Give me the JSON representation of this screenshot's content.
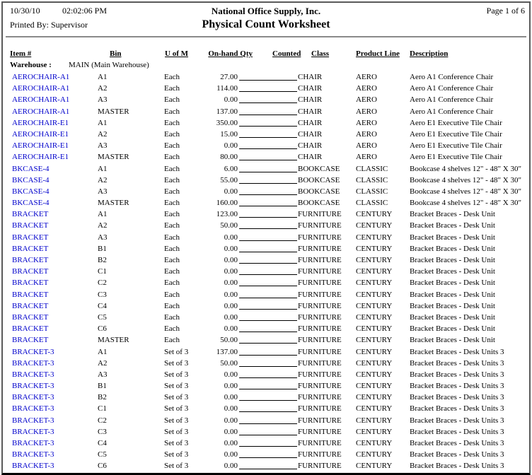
{
  "report": {
    "date": "10/30/10",
    "time": "02:02:06 PM",
    "company": "National Office Supply, Inc.",
    "page": "Page 1 of 6",
    "printed_by": "Printed By: Supervisor",
    "title": "Physical Count Worksheet"
  },
  "columns": {
    "item": "Item #",
    "bin": "Bin",
    "uom": "U of M",
    "qty": "On-hand Qty",
    "counted": "Counted",
    "class": "Class",
    "product_line": "Product Line",
    "description": "Description"
  },
  "warehouse": {
    "label": "Warehouse :",
    "value": "MAIN (Main Warehouse)"
  },
  "colors": {
    "item_link": "#0000CC",
    "frame_border": "#5a5a5a",
    "bottom_border": "#000000"
  },
  "rows": [
    {
      "item": "AEROCHAIR-A1",
      "bin": "A1",
      "uom": "Each",
      "qty": "27.00",
      "class": "CHAIR",
      "product_line": "AERO",
      "description": "Aero A1 Conference Chair"
    },
    {
      "item": "AEROCHAIR-A1",
      "bin": "A2",
      "uom": "Each",
      "qty": "114.00",
      "class": "CHAIR",
      "product_line": "AERO",
      "description": "Aero A1 Conference Chair"
    },
    {
      "item": "AEROCHAIR-A1",
      "bin": "A3",
      "uom": "Each",
      "qty": "0.00",
      "class": "CHAIR",
      "product_line": "AERO",
      "description": "Aero A1 Conference Chair"
    },
    {
      "item": "AEROCHAIR-A1",
      "bin": "MASTER",
      "uom": "Each",
      "qty": "137.00",
      "class": "CHAIR",
      "product_line": "AERO",
      "description": "Aero A1 Conference Chair"
    },
    {
      "item": "AEROCHAIR-E1",
      "bin": "A1",
      "uom": "Each",
      "qty": "350.00",
      "class": "CHAIR",
      "product_line": "AERO",
      "description": "Aero E1 Executive Tile Chair"
    },
    {
      "item": "AEROCHAIR-E1",
      "bin": "A2",
      "uom": "Each",
      "qty": "15.00",
      "class": "CHAIR",
      "product_line": "AERO",
      "description": "Aero E1 Executive Tile Chair"
    },
    {
      "item": "AEROCHAIR-E1",
      "bin": "A3",
      "uom": "Each",
      "qty": "0.00",
      "class": "CHAIR",
      "product_line": "AERO",
      "description": "Aero E1 Executive Tile Chair"
    },
    {
      "item": "AEROCHAIR-E1",
      "bin": "MASTER",
      "uom": "Each",
      "qty": "80.00",
      "class": "CHAIR",
      "product_line": "AERO",
      "description": "Aero E1 Executive Tile Chair"
    },
    {
      "item": "BKCASE-4",
      "bin": "A1",
      "uom": "Each",
      "qty": "6.00",
      "class": "BOOKCASE",
      "product_line": "CLASSIC",
      "description": "Bookcase 4 shelves 12\" - 48\" X 30\""
    },
    {
      "item": "BKCASE-4",
      "bin": "A2",
      "uom": "Each",
      "qty": "55.00",
      "class": "BOOKCASE",
      "product_line": "CLASSIC",
      "description": "Bookcase 4 shelves 12\" - 48\" X 30\""
    },
    {
      "item": "BKCASE-4",
      "bin": "A3",
      "uom": "Each",
      "qty": "0.00",
      "class": "BOOKCASE",
      "product_line": "CLASSIC",
      "description": "Bookcase 4 shelves 12\" - 48\" X 30\""
    },
    {
      "item": "BKCASE-4",
      "bin": "MASTER",
      "uom": "Each",
      "qty": "160.00",
      "class": "BOOKCASE",
      "product_line": "CLASSIC",
      "description": "Bookcase 4 shelves 12\" - 48\" X 30\""
    },
    {
      "item": "BRACKET",
      "bin": "A1",
      "uom": "Each",
      "qty": "123.00",
      "class": "FURNITURE",
      "product_line": "CENTURY",
      "description": "Bracket Braces - Desk Unit"
    },
    {
      "item": "BRACKET",
      "bin": "A2",
      "uom": "Each",
      "qty": "50.00",
      "class": "FURNITURE",
      "product_line": "CENTURY",
      "description": "Bracket Braces - Desk Unit"
    },
    {
      "item": "BRACKET",
      "bin": "A3",
      "uom": "Each",
      "qty": "0.00",
      "class": "FURNITURE",
      "product_line": "CENTURY",
      "description": "Bracket Braces - Desk Unit"
    },
    {
      "item": "BRACKET",
      "bin": "B1",
      "uom": "Each",
      "qty": "0.00",
      "class": "FURNITURE",
      "product_line": "CENTURY",
      "description": "Bracket Braces - Desk Unit"
    },
    {
      "item": "BRACKET",
      "bin": "B2",
      "uom": "Each",
      "qty": "0.00",
      "class": "FURNITURE",
      "product_line": "CENTURY",
      "description": "Bracket Braces - Desk Unit"
    },
    {
      "item": "BRACKET",
      "bin": "C1",
      "uom": "Each",
      "qty": "0.00",
      "class": "FURNITURE",
      "product_line": "CENTURY",
      "description": "Bracket Braces - Desk Unit"
    },
    {
      "item": "BRACKET",
      "bin": "C2",
      "uom": "Each",
      "qty": "0.00",
      "class": "FURNITURE",
      "product_line": "CENTURY",
      "description": "Bracket Braces - Desk Unit"
    },
    {
      "item": "BRACKET",
      "bin": "C3",
      "uom": "Each",
      "qty": "0.00",
      "class": "FURNITURE",
      "product_line": "CENTURY",
      "description": "Bracket Braces - Desk Unit"
    },
    {
      "item": "BRACKET",
      "bin": "C4",
      "uom": "Each",
      "qty": "0.00",
      "class": "FURNITURE",
      "product_line": "CENTURY",
      "description": "Bracket Braces - Desk Unit"
    },
    {
      "item": "BRACKET",
      "bin": "C5",
      "uom": "Each",
      "qty": "0.00",
      "class": "FURNITURE",
      "product_line": "CENTURY",
      "description": "Bracket Braces - Desk Unit"
    },
    {
      "item": "BRACKET",
      "bin": "C6",
      "uom": "Each",
      "qty": "0.00",
      "class": "FURNITURE",
      "product_line": "CENTURY",
      "description": "Bracket Braces - Desk Unit"
    },
    {
      "item": "BRACKET",
      "bin": "MASTER",
      "uom": "Each",
      "qty": "50.00",
      "class": "FURNITURE",
      "product_line": "CENTURY",
      "description": "Bracket Braces - Desk Unit"
    },
    {
      "item": "BRACKET-3",
      "bin": "A1",
      "uom": "Set of 3",
      "qty": "137.00",
      "class": "FURNITURE",
      "product_line": "CENTURY",
      "description": "Bracket Braces - Desk Units 3"
    },
    {
      "item": "BRACKET-3",
      "bin": "A2",
      "uom": "Set of 3",
      "qty": "50.00",
      "class": "FURNITURE",
      "product_line": "CENTURY",
      "description": "Bracket Braces - Desk Units 3"
    },
    {
      "item": "BRACKET-3",
      "bin": "A3",
      "uom": "Set of 3",
      "qty": "0.00",
      "class": "FURNITURE",
      "product_line": "CENTURY",
      "description": "Bracket Braces - Desk Units 3"
    },
    {
      "item": "BRACKET-3",
      "bin": "B1",
      "uom": "Set of 3",
      "qty": "0.00",
      "class": "FURNITURE",
      "product_line": "CENTURY",
      "description": "Bracket Braces - Desk Units 3"
    },
    {
      "item": "BRACKET-3",
      "bin": "B2",
      "uom": "Set of 3",
      "qty": "0.00",
      "class": "FURNITURE",
      "product_line": "CENTURY",
      "description": "Bracket Braces - Desk Units 3"
    },
    {
      "item": "BRACKET-3",
      "bin": "C1",
      "uom": "Set of 3",
      "qty": "0.00",
      "class": "FURNITURE",
      "product_line": "CENTURY",
      "description": "Bracket Braces - Desk Units 3"
    },
    {
      "item": "BRACKET-3",
      "bin": "C2",
      "uom": "Set of 3",
      "qty": "0.00",
      "class": "FURNITURE",
      "product_line": "CENTURY",
      "description": "Bracket Braces - Desk Units 3"
    },
    {
      "item": "BRACKET-3",
      "bin": "C3",
      "uom": "Set of 3",
      "qty": "0.00",
      "class": "FURNITURE",
      "product_line": "CENTURY",
      "description": "Bracket Braces - Desk Units 3"
    },
    {
      "item": "BRACKET-3",
      "bin": "C4",
      "uom": "Set of 3",
      "qty": "0.00",
      "class": "FURNITURE",
      "product_line": "CENTURY",
      "description": "Bracket Braces - Desk Units 3"
    },
    {
      "item": "BRACKET-3",
      "bin": "C5",
      "uom": "Set of 3",
      "qty": "0.00",
      "class": "FURNITURE",
      "product_line": "CENTURY",
      "description": "Bracket Braces - Desk Units 3"
    },
    {
      "item": "BRACKET-3",
      "bin": "C6",
      "uom": "Set of 3",
      "qty": "0.00",
      "class": "FURNITURE",
      "product_line": "CENTURY",
      "description": "Bracket Braces - Desk Units 3"
    }
  ]
}
